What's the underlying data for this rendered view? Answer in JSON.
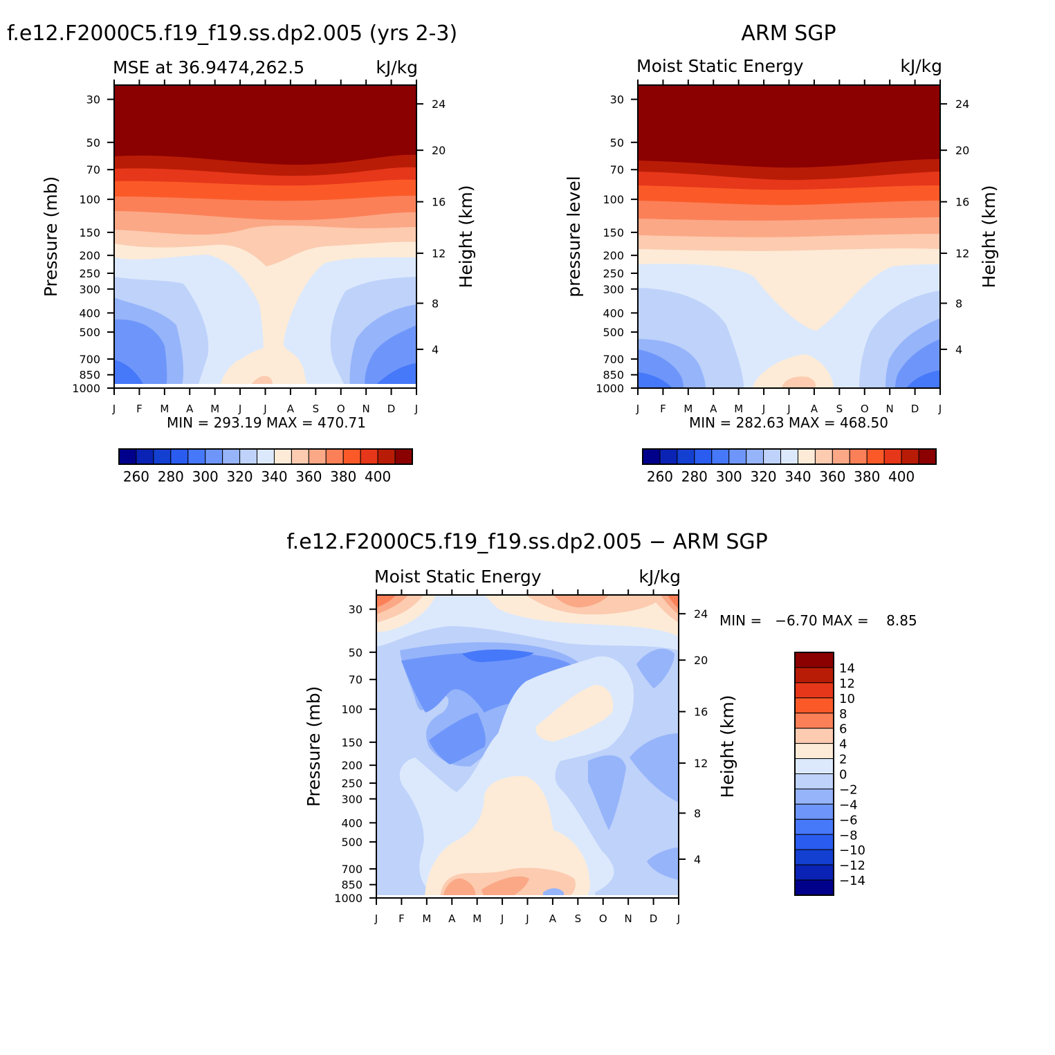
{
  "chart_data": [
    {
      "type": "heatmap",
      "title": "f.e12.F2000C5.f19_f19.ss.dp2.005 (yrs 2-3)",
      "subtitle_left": "MSE at 36.9474,262.5",
      "units": "kJ/kg",
      "ylabel": "Pressure (mb)",
      "ylabel_right": "Height (km)",
      "x_ticks": [
        "J",
        "F",
        "M",
        "A",
        "M",
        "J",
        "J",
        "A",
        "S",
        "O",
        "N",
        "D",
        "J"
      ],
      "y_ticks": [
        "30",
        "50",
        "70",
        "100",
        "150",
        "200",
        "250",
        "300",
        "400",
        "500",
        "700",
        "850",
        "1000"
      ],
      "y_ticks_right": [
        "24",
        "20",
        "16",
        "12",
        "8",
        "4"
      ],
      "stats": "MIN = 293.19 MAX = 470.71",
      "colorbar_labels": [
        "260",
        "280",
        "300",
        "320",
        "340",
        "360",
        "380",
        "400"
      ],
      "zmin": 293.19,
      "zmax": 470.71
    },
    {
      "type": "heatmap",
      "title": "ARM SGP",
      "subtitle_left": "Moist Static Energy",
      "units": "kJ/kg",
      "ylabel": "pressure level",
      "ylabel_right": "Height (km)",
      "x_ticks": [
        "J",
        "F",
        "M",
        "A",
        "M",
        "J",
        "J",
        "A",
        "S",
        "O",
        "N",
        "D",
        "J"
      ],
      "y_ticks": [
        "30",
        "50",
        "70",
        "100",
        "150",
        "200",
        "250",
        "300",
        "400",
        "500",
        "700",
        "850",
        "1000"
      ],
      "y_ticks_right": [
        "24",
        "20",
        "16",
        "12",
        "8",
        "4"
      ],
      "stats": "MIN = 282.63 MAX = 468.50",
      "colorbar_labels": [
        "260",
        "280",
        "300",
        "320",
        "340",
        "360",
        "380",
        "400"
      ],
      "zmin": 282.63,
      "zmax": 468.5
    },
    {
      "type": "heatmap",
      "title": "f.e12.F2000C5.f19_f19.ss.dp2.005 − ARM SGP",
      "subtitle_left": "Moist Static Energy",
      "units": "kJ/kg",
      "ylabel": "Pressure (mb)",
      "ylabel_right": "Height (km)",
      "x_ticks": [
        "J",
        "F",
        "M",
        "A",
        "M",
        "J",
        "J",
        "A",
        "S",
        "O",
        "N",
        "D",
        "J"
      ],
      "y_ticks": [
        "30",
        "50",
        "70",
        "100",
        "150",
        "200",
        "250",
        "300",
        "400",
        "500",
        "700",
        "850",
        "1000"
      ],
      "y_ticks_right": [
        "24",
        "20",
        "16",
        "12",
        "8",
        "4"
      ],
      "stats": "MIN =   −6.70 MAX =    8.85",
      "colorbar_labels": [
        "14",
        "12",
        "10",
        "8",
        "6",
        "4",
        "2",
        "0",
        "−2",
        "−4",
        "−6",
        "−8",
        "−10",
        "−12",
        "−14"
      ],
      "zmin": -6.7,
      "zmax": 8.85
    }
  ],
  "palette": {
    "abs": [
      "#00008b",
      "#0a23b4",
      "#1440d2",
      "#2a5cf0",
      "#4678fa",
      "#6e96fa",
      "#96b4fa",
      "#bed2fa",
      "#dce9fc",
      "#fdebd7",
      "#fccbb0",
      "#fba886",
      "#fb8058",
      "#fb5a28",
      "#e6371a",
      "#b91c06",
      "#8b0000"
    ],
    "diff": [
      "#8b0000",
      "#b91c06",
      "#e6371a",
      "#fb5a28",
      "#fb8058",
      "#fccbb0",
      "#fdebd7",
      "#dce9fc",
      "#bed2fa",
      "#96b4fa",
      "#6e96fa",
      "#4678fa",
      "#2a5cf0",
      "#1440d2",
      "#0a23b4",
      "#00008b"
    ]
  }
}
